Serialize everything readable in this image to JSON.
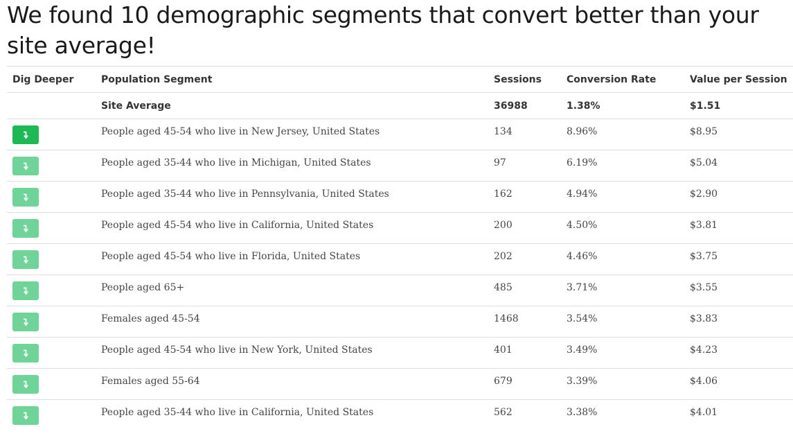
{
  "headline": "We found 10 demographic segments that convert better than your site average!",
  "columns": {
    "dig_deeper": "Dig Deeper",
    "segment": "Population Segment",
    "sessions": "Sessions",
    "conversion_rate": "Conversion Rate",
    "value_per_session": "Value per Session"
  },
  "site_average": {
    "label": "Site Average",
    "sessions": "36988",
    "conversion_rate": "1.38%",
    "value_per_session": "$1.51"
  },
  "segments": [
    {
      "segment": "People aged 45-54 who live in New Jersey, United States",
      "sessions": "134",
      "conversion_rate": "8.96%",
      "value_per_session": "$8.95"
    },
    {
      "segment": "People aged 35-44 who live in Michigan, United States",
      "sessions": "97",
      "conversion_rate": "6.19%",
      "value_per_session": "$5.04"
    },
    {
      "segment": "People aged 35-44 who live in Pennsylvania, United States",
      "sessions": "162",
      "conversion_rate": "4.94%",
      "value_per_session": "$2.90"
    },
    {
      "segment": "People aged 45-54 who live in California, United States",
      "sessions": "200",
      "conversion_rate": "4.50%",
      "value_per_session": "$3.81"
    },
    {
      "segment": "People aged 45-54 who live in Florida, United States",
      "sessions": "202",
      "conversion_rate": "4.46%",
      "value_per_session": "$3.75"
    },
    {
      "segment": "People aged 65+",
      "sessions": "485",
      "conversion_rate": "3.71%",
      "value_per_session": "$3.55"
    },
    {
      "segment": "Females aged 45-54",
      "sessions": "1468",
      "conversion_rate": "3.54%",
      "value_per_session": "$3.83"
    },
    {
      "segment": "People aged 45-54 who live in New York, United States",
      "sessions": "401",
      "conversion_rate": "3.49%",
      "value_per_session": "$4.23"
    },
    {
      "segment": "Females aged 55-64",
      "sessions": "679",
      "conversion_rate": "3.39%",
      "value_per_session": "$4.06"
    },
    {
      "segment": "People aged 35-44 who live in California, United States",
      "sessions": "562",
      "conversion_rate": "3.38%",
      "value_per_session": "$4.01"
    }
  ],
  "dig_deeper_icon": "arrow-turn-down-icon",
  "colors": {
    "button_active": "#1cb955",
    "button_default": "#6fd497",
    "divider": "#dddddd"
  }
}
